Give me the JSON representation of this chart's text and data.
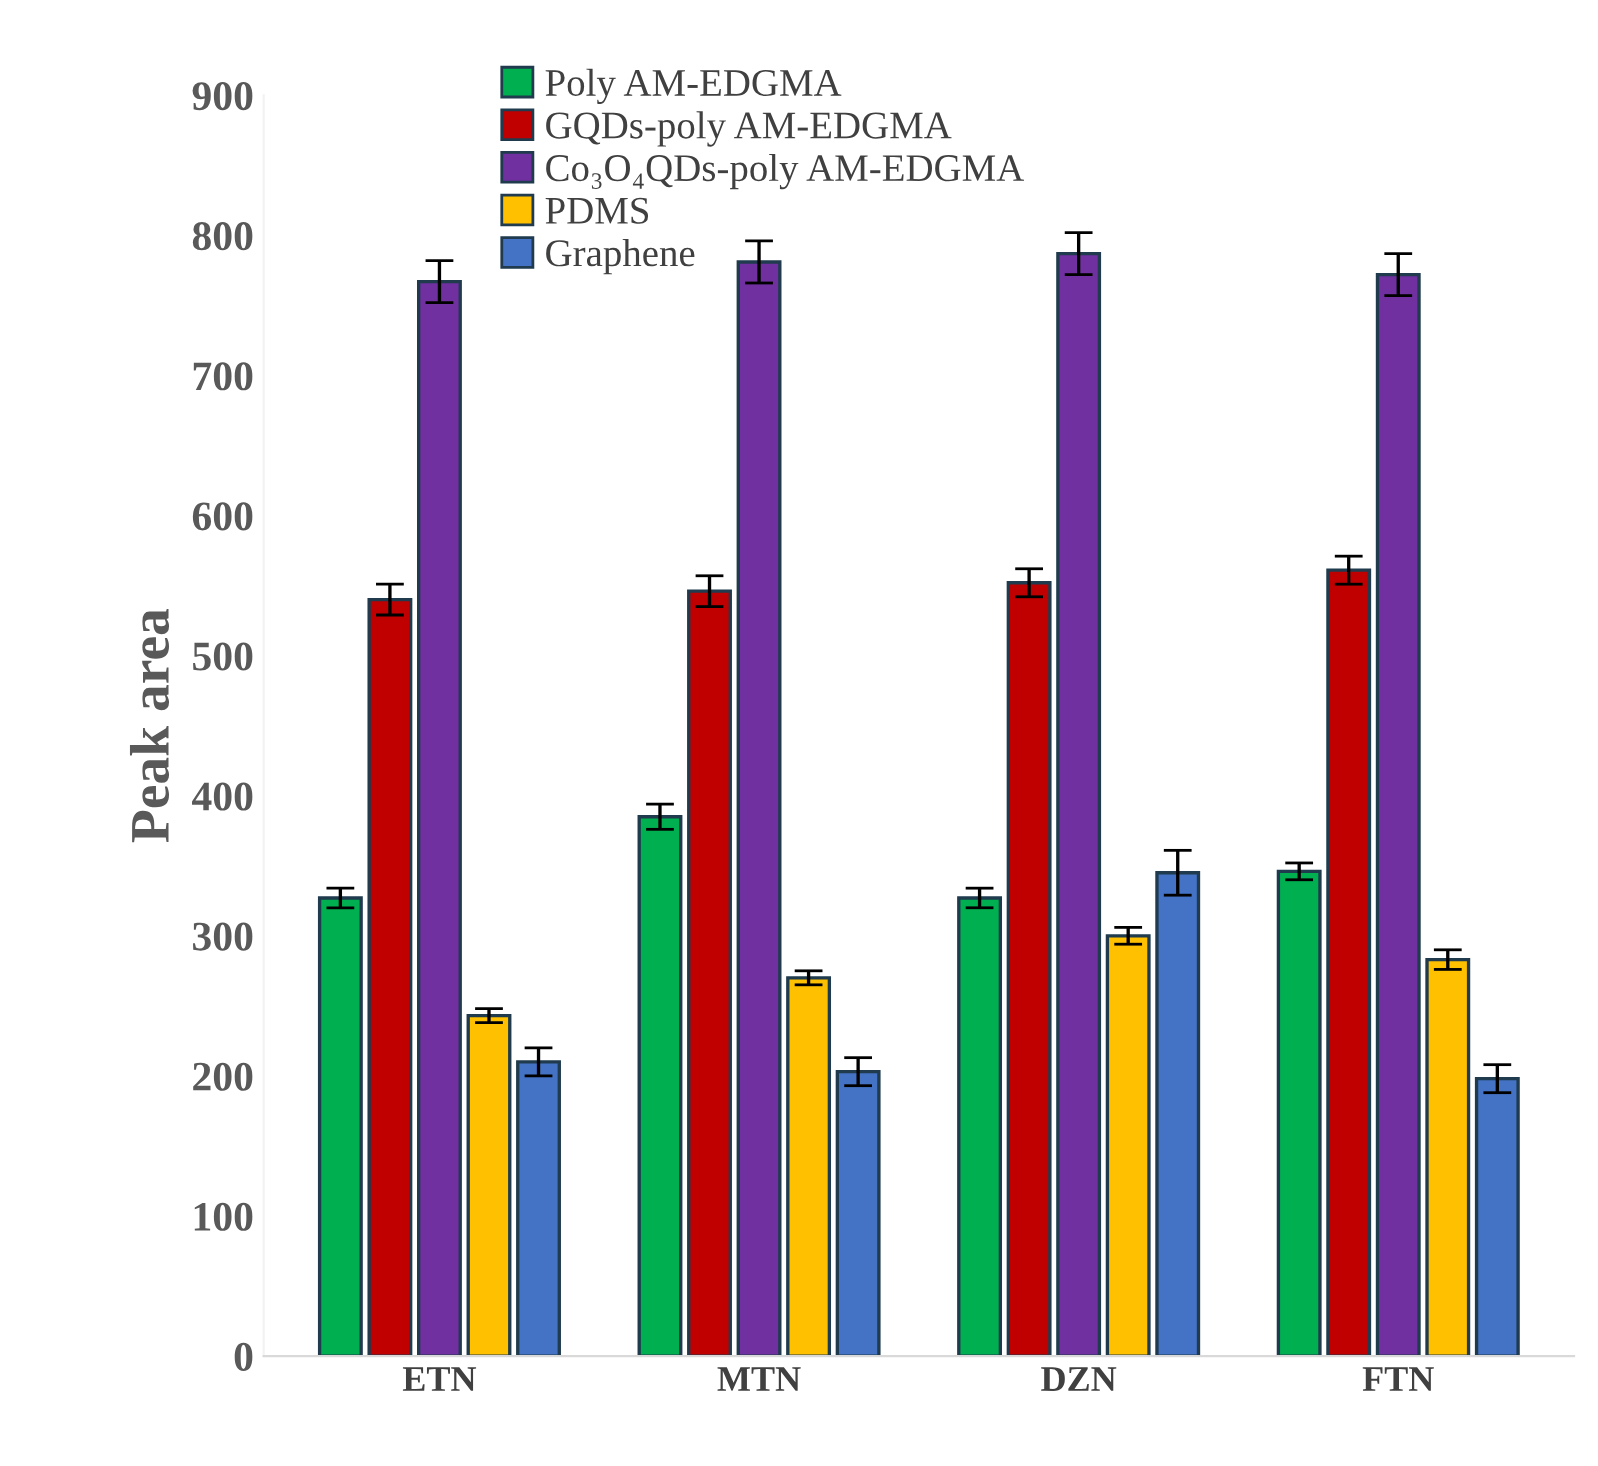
{
  "chart_data": {
    "type": "bar",
    "ylabel": "Peak area",
    "categories": [
      "ETN",
      "MTN",
      "DZN",
      "FTN"
    ],
    "series": [
      {
        "name": "Poly AM-EDGMA",
        "color": "#00b050",
        "values": [
          327,
          385,
          327,
          346
        ],
        "errors": [
          7,
          9,
          7,
          6
        ]
      },
      {
        "name": "GQDs-poly AM-EDGMA",
        "color": "#c00000",
        "values": [
          540,
          546,
          552,
          561
        ],
        "errors": [
          11,
          11,
          10,
          10
        ]
      },
      {
        "name": "Co₃O₄QDs-poly AM-EDGMA",
        "color": "#7030a0",
        "values": [
          767,
          781,
          787,
          772
        ],
        "errors": [
          15,
          15,
          15,
          15
        ]
      },
      {
        "name": "PDMS",
        "color": "#ffc000",
        "values": [
          243,
          270,
          300,
          283
        ],
        "errors": [
          5,
          5,
          6,
          7
        ]
      },
      {
        "name": "Graphene",
        "color": "#4472c4",
        "values": [
          210,
          203,
          345,
          198
        ],
        "errors": [
          10,
          10,
          16,
          10
        ]
      }
    ],
    "ylim": [
      0,
      900
    ],
    "yticks": [
      0,
      100,
      200,
      300,
      400,
      500,
      600,
      700,
      800,
      900
    ],
    "grid": false,
    "legend": "top left"
  }
}
